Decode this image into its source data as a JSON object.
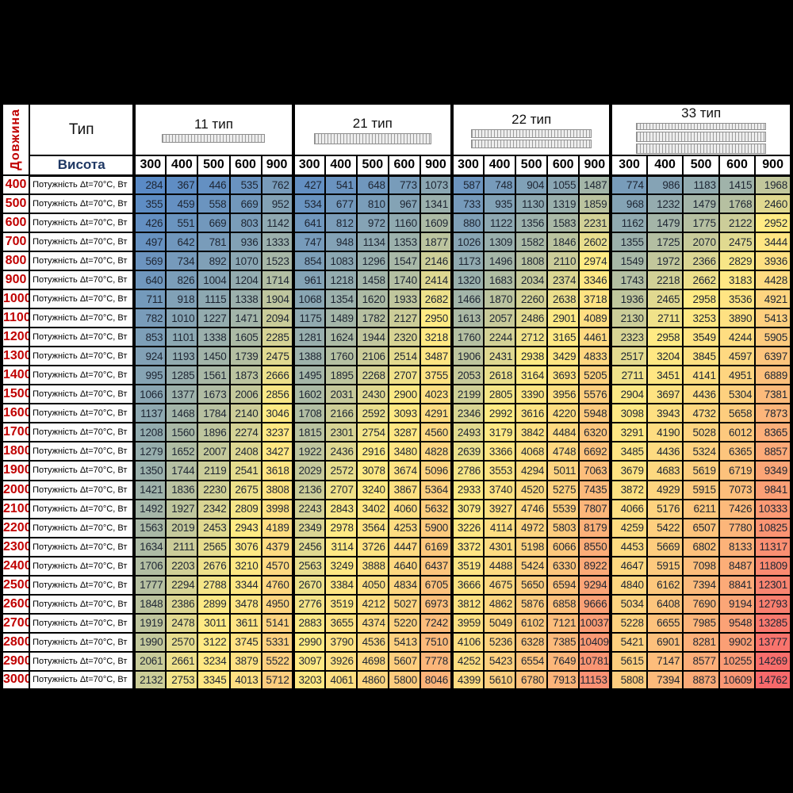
{
  "frame": {
    "background": "#000000"
  },
  "header": {
    "length_label": "Довжина",
    "type_label": "Тип",
    "height_label": "Висота",
    "power_row_label": "Потужність Δt=70°C, Вт"
  },
  "colors": {
    "scale_min": "#5A8AC6",
    "scale_mid": "#FFEB84",
    "scale_max": "#F8696B",
    "length_text": "#C00000",
    "height_header_text": "#1F3864",
    "grid": "#000000"
  },
  "chart_data": {
    "type": "heatmap",
    "title": "",
    "row_axis_label": "Довжина",
    "col_axis_label": "Висота",
    "value_label": "Потужність Δt=70°C, Вт",
    "heights": [
      300,
      400,
      500,
      600,
      900
    ],
    "lengths": [
      400,
      500,
      600,
      700,
      800,
      900,
      1000,
      1100,
      1200,
      1300,
      1400,
      1500,
      1600,
      1700,
      1800,
      1900,
      2000,
      2100,
      2200,
      2300,
      2400,
      2500,
      2600,
      2700,
      2800,
      2900,
      3000
    ],
    "color_scale": {
      "min": "#5A8AC6",
      "mid": "#FFEB84",
      "max": "#F8696B",
      "midpoint": "median"
    },
    "groups": [
      {
        "name": "11 тип",
        "icon": "radiator-type-11-icon",
        "values": [
          [
            284,
            367,
            446,
            535,
            762
          ],
          [
            355,
            459,
            558,
            669,
            952
          ],
          [
            426,
            551,
            669,
            803,
            1142
          ],
          [
            497,
            642,
            781,
            936,
            1333
          ],
          [
            569,
            734,
            892,
            1070,
            1523
          ],
          [
            640,
            826,
            1004,
            1204,
            1714
          ],
          [
            711,
            918,
            1115,
            1338,
            1904
          ],
          [
            782,
            1010,
            1227,
            1471,
            2094
          ],
          [
            853,
            1101,
            1338,
            1605,
            2285
          ],
          [
            924,
            1193,
            1450,
            1739,
            2475
          ],
          [
            995,
            1285,
            1561,
            1873,
            2666
          ],
          [
            1066,
            1377,
            1673,
            2006,
            2856
          ],
          [
            1137,
            1468,
            1784,
            2140,
            3046
          ],
          [
            1208,
            1560,
            1896,
            2274,
            3237
          ],
          [
            1279,
            1652,
            2007,
            2408,
            3427
          ],
          [
            1350,
            1744,
            2119,
            2541,
            3618
          ],
          [
            1421,
            1836,
            2230,
            2675,
            3808
          ],
          [
            1492,
            1927,
            2342,
            2809,
            3998
          ],
          [
            1563,
            2019,
            2453,
            2943,
            4189
          ],
          [
            1634,
            2111,
            2565,
            3076,
            4379
          ],
          [
            1706,
            2203,
            2676,
            3210,
            4570
          ],
          [
            1777,
            2294,
            2788,
            3344,
            4760
          ],
          [
            1848,
            2386,
            2899,
            3478,
            4950
          ],
          [
            1919,
            2478,
            3011,
            3611,
            5141
          ],
          [
            1990,
            2570,
            3122,
            3745,
            5331
          ],
          [
            2061,
            2661,
            3234,
            3879,
            5522
          ],
          [
            2132,
            2753,
            3345,
            4013,
            5712
          ]
        ]
      },
      {
        "name": "21 тип",
        "icon": "radiator-type-21-icon",
        "values": [
          [
            427,
            541,
            648,
            773,
            1073
          ],
          [
            534,
            677,
            810,
            967,
            1341
          ],
          [
            641,
            812,
            972,
            1160,
            1609
          ],
          [
            747,
            948,
            1134,
            1353,
            1877
          ],
          [
            854,
            1083,
            1296,
            1547,
            2146
          ],
          [
            961,
            1218,
            1458,
            1740,
            2414
          ],
          [
            1068,
            1354,
            1620,
            1933,
            2682
          ],
          [
            1175,
            1489,
            1782,
            2127,
            2950
          ],
          [
            1281,
            1624,
            1944,
            2320,
            3218
          ],
          [
            1388,
            1760,
            2106,
            2514,
            3487
          ],
          [
            1495,
            1895,
            2268,
            2707,
            3755
          ],
          [
            1602,
            2031,
            2430,
            2900,
            4023
          ],
          [
            1708,
            2166,
            2592,
            3093,
            4291
          ],
          [
            1815,
            2301,
            2754,
            3287,
            4560
          ],
          [
            1922,
            2436,
            2916,
            3480,
            4828
          ],
          [
            2029,
            2572,
            3078,
            3674,
            5096
          ],
          [
            2136,
            2707,
            3240,
            3867,
            5364
          ],
          [
            2243,
            2843,
            3402,
            4060,
            5632
          ],
          [
            2349,
            2978,
            3564,
            4253,
            5900
          ],
          [
            2456,
            3114,
            3726,
            4447,
            6169
          ],
          [
            2563,
            3249,
            3888,
            4640,
            6437
          ],
          [
            2670,
            3384,
            4050,
            4834,
            6705
          ],
          [
            2776,
            3519,
            4212,
            5027,
            6973
          ],
          [
            2883,
            3655,
            4374,
            5220,
            7242
          ],
          [
            2990,
            3790,
            4536,
            5413,
            7510
          ],
          [
            3097,
            3926,
            4698,
            5607,
            7778
          ],
          [
            3203,
            4061,
            4860,
            5800,
            8046
          ]
        ]
      },
      {
        "name": "22 тип",
        "icon": "radiator-type-22-icon",
        "values": [
          [
            587,
            748,
            904,
            1055,
            1487
          ],
          [
            733,
            935,
            1130,
            1319,
            1859
          ],
          [
            880,
            1122,
            1356,
            1583,
            2231
          ],
          [
            1026,
            1309,
            1582,
            1846,
            2602
          ],
          [
            1173,
            1496,
            1808,
            2110,
            2974
          ],
          [
            1320,
            1683,
            2034,
            2374,
            3346
          ],
          [
            1466,
            1870,
            2260,
            2638,
            3718
          ],
          [
            1613,
            2057,
            2486,
            2901,
            4089
          ],
          [
            1760,
            2244,
            2712,
            3165,
            4461
          ],
          [
            1906,
            2431,
            2938,
            3429,
            4833
          ],
          [
            2053,
            2618,
            3164,
            3693,
            5205
          ],
          [
            2199,
            2805,
            3390,
            3956,
            5576
          ],
          [
            2346,
            2992,
            3616,
            4220,
            5948
          ],
          [
            2493,
            3179,
            3842,
            4484,
            6320
          ],
          [
            2639,
            3366,
            4068,
            4748,
            6692
          ],
          [
            2786,
            3553,
            4294,
            5011,
            7063
          ],
          [
            2933,
            3740,
            4520,
            5275,
            7435
          ],
          [
            3079,
            3927,
            4746,
            5539,
            7807
          ],
          [
            3226,
            4114,
            4972,
            5803,
            8179
          ],
          [
            3372,
            4301,
            5198,
            6066,
            8550
          ],
          [
            3519,
            4488,
            5424,
            6330,
            8922
          ],
          [
            3666,
            4675,
            5650,
            6594,
            9294
          ],
          [
            3812,
            4862,
            5876,
            6858,
            9666
          ],
          [
            3959,
            5049,
            6102,
            7121,
            10037
          ],
          [
            4106,
            5236,
            6328,
            7385,
            10409
          ],
          [
            4252,
            5423,
            6554,
            7649,
            10781
          ],
          [
            4399,
            5610,
            6780,
            7913,
            11153
          ]
        ]
      },
      {
        "name": "33 тип",
        "icon": "radiator-type-33-icon",
        "values": [
          [
            774,
            986,
            1183,
            1415,
            1968
          ],
          [
            968,
            1232,
            1479,
            1768,
            2460
          ],
          [
            1162,
            1479,
            1775,
            2122,
            2952
          ],
          [
            1355,
            1725,
            2070,
            2475,
            3444
          ],
          [
            1549,
            1972,
            2366,
            2829,
            3936
          ],
          [
            1743,
            2218,
            2662,
            3183,
            4428
          ],
          [
            1936,
            2465,
            2958,
            3536,
            4921
          ],
          [
            2130,
            2711,
            3253,
            3890,
            5413
          ],
          [
            2323,
            2958,
            3549,
            4244,
            5905
          ],
          [
            2517,
            3204,
            3845,
            4597,
            6397
          ],
          [
            2711,
            3451,
            4141,
            4951,
            6889
          ],
          [
            2904,
            3697,
            4436,
            5304,
            7381
          ],
          [
            3098,
            3943,
            4732,
            5658,
            7873
          ],
          [
            3291,
            4190,
            5028,
            6012,
            8365
          ],
          [
            3485,
            4436,
            5324,
            6365,
            8857
          ],
          [
            3679,
            4683,
            5619,
            6719,
            9349
          ],
          [
            3872,
            4929,
            5915,
            7073,
            9841
          ],
          [
            4066,
            5176,
            6211,
            7426,
            10333
          ],
          [
            4259,
            5422,
            6507,
            7780,
            10825
          ],
          [
            4453,
            5669,
            6802,
            8133,
            11317
          ],
          [
            4647,
            5915,
            7098,
            8487,
            11809
          ],
          [
            4840,
            6162,
            7394,
            8841,
            12301
          ],
          [
            5034,
            6408,
            7690,
            9194,
            12793
          ],
          [
            5228,
            6655,
            7985,
            9548,
            13285
          ],
          [
            5421,
            6901,
            8281,
            9902,
            13777
          ],
          [
            5615,
            7147,
            8577,
            10255,
            14269
          ],
          [
            5808,
            7394,
            8873,
            10609,
            14762
          ]
        ]
      }
    ]
  }
}
